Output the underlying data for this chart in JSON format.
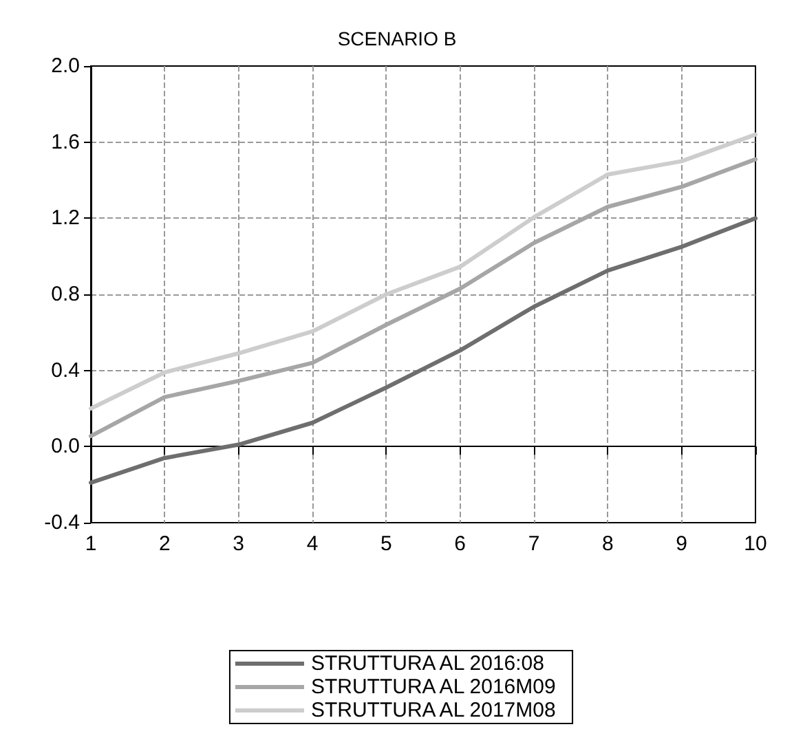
{
  "chart_data": {
    "type": "line",
    "title": "SCENARIO B",
    "x": [
      1,
      2,
      3,
      4,
      5,
      6,
      7,
      8,
      9,
      10
    ],
    "series": [
      {
        "name": "STRUTTURA AL 2016:08",
        "color": "#6e6e6e",
        "values": [
          -0.19,
          -0.06,
          0.01,
          0.125,
          0.31,
          0.505,
          0.735,
          0.925,
          1.05,
          1.2
        ]
      },
      {
        "name": "STRUTTURA AL 2016M09",
        "color": "#a6a6a6",
        "values": [
          0.055,
          0.26,
          0.345,
          0.44,
          0.64,
          0.83,
          1.07,
          1.26,
          1.365,
          1.51
        ]
      },
      {
        "name": "STRUTTURA AL 2017M08",
        "color": "#cdcdcd",
        "values": [
          0.2,
          0.39,
          0.49,
          0.605,
          0.8,
          0.945,
          1.205,
          1.43,
          1.5,
          1.64
        ]
      }
    ],
    "xlim": [
      1,
      10
    ],
    "xticks": [
      1,
      2,
      3,
      4,
      5,
      6,
      7,
      8,
      9,
      10
    ],
    "ylim": [
      -0.4,
      2.0
    ],
    "yticks": [
      {
        "value": -0.4,
        "label": "-0.4"
      },
      {
        "value": 0,
        "label": "0.0"
      },
      {
        "value": 0.4,
        "label": "0.4"
      },
      {
        "value": 0.8,
        "label": "0.8"
      },
      {
        "value": 1.2,
        "label": "1.2"
      },
      {
        "value": 1.6,
        "label": "1.6"
      },
      {
        "value": 2,
        "label": "2.0"
      }
    ],
    "grid": true,
    "legend": "bottom",
    "marker": "none",
    "line_style": "solid"
  }
}
